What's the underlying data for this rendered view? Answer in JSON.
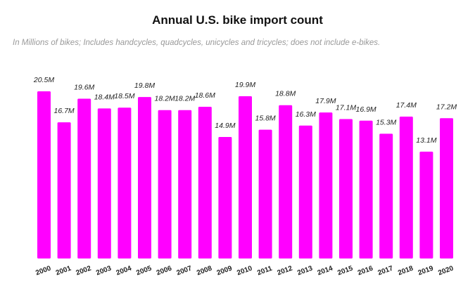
{
  "chart_data": {
    "type": "bar",
    "title": "Annual U.S. bike import count",
    "subtitle": "In Millions of bikes; Includes handcycles, quadcycles, unicycles and tricycles; does not include e-bikes.",
    "categories": [
      "2000",
      "2001",
      "2002",
      "2003",
      "2004",
      "2005",
      "2006",
      "2007",
      "2008",
      "2009",
      "2010",
      "2011",
      "2012",
      "2013",
      "2014",
      "2015",
      "2016",
      "2017",
      "2018",
      "2019",
      "2020"
    ],
    "values": [
      20.5,
      16.7,
      19.6,
      18.4,
      18.5,
      19.8,
      18.2,
      18.2,
      18.6,
      14.9,
      19.9,
      15.8,
      18.8,
      16.3,
      17.9,
      17.1,
      16.9,
      15.3,
      17.4,
      13.1,
      17.2
    ],
    "labels": [
      "20.5M",
      "16.7M",
      "19.6M",
      "18.4M",
      "18.5M",
      "19.8M",
      "18.2M",
      "18.2M",
      "18.6M",
      "14.9M",
      "19.9M",
      "15.8M",
      "18.8M",
      "16.3M",
      "17.9M",
      "17.1M",
      "16.9M",
      "15.3M",
      "17.4M",
      "13.1M",
      "17.2M"
    ],
    "xlabel": "",
    "ylabel": "",
    "ylim": [
      0,
      20.5
    ],
    "grid": false,
    "bar_color": "#ff00ff"
  }
}
